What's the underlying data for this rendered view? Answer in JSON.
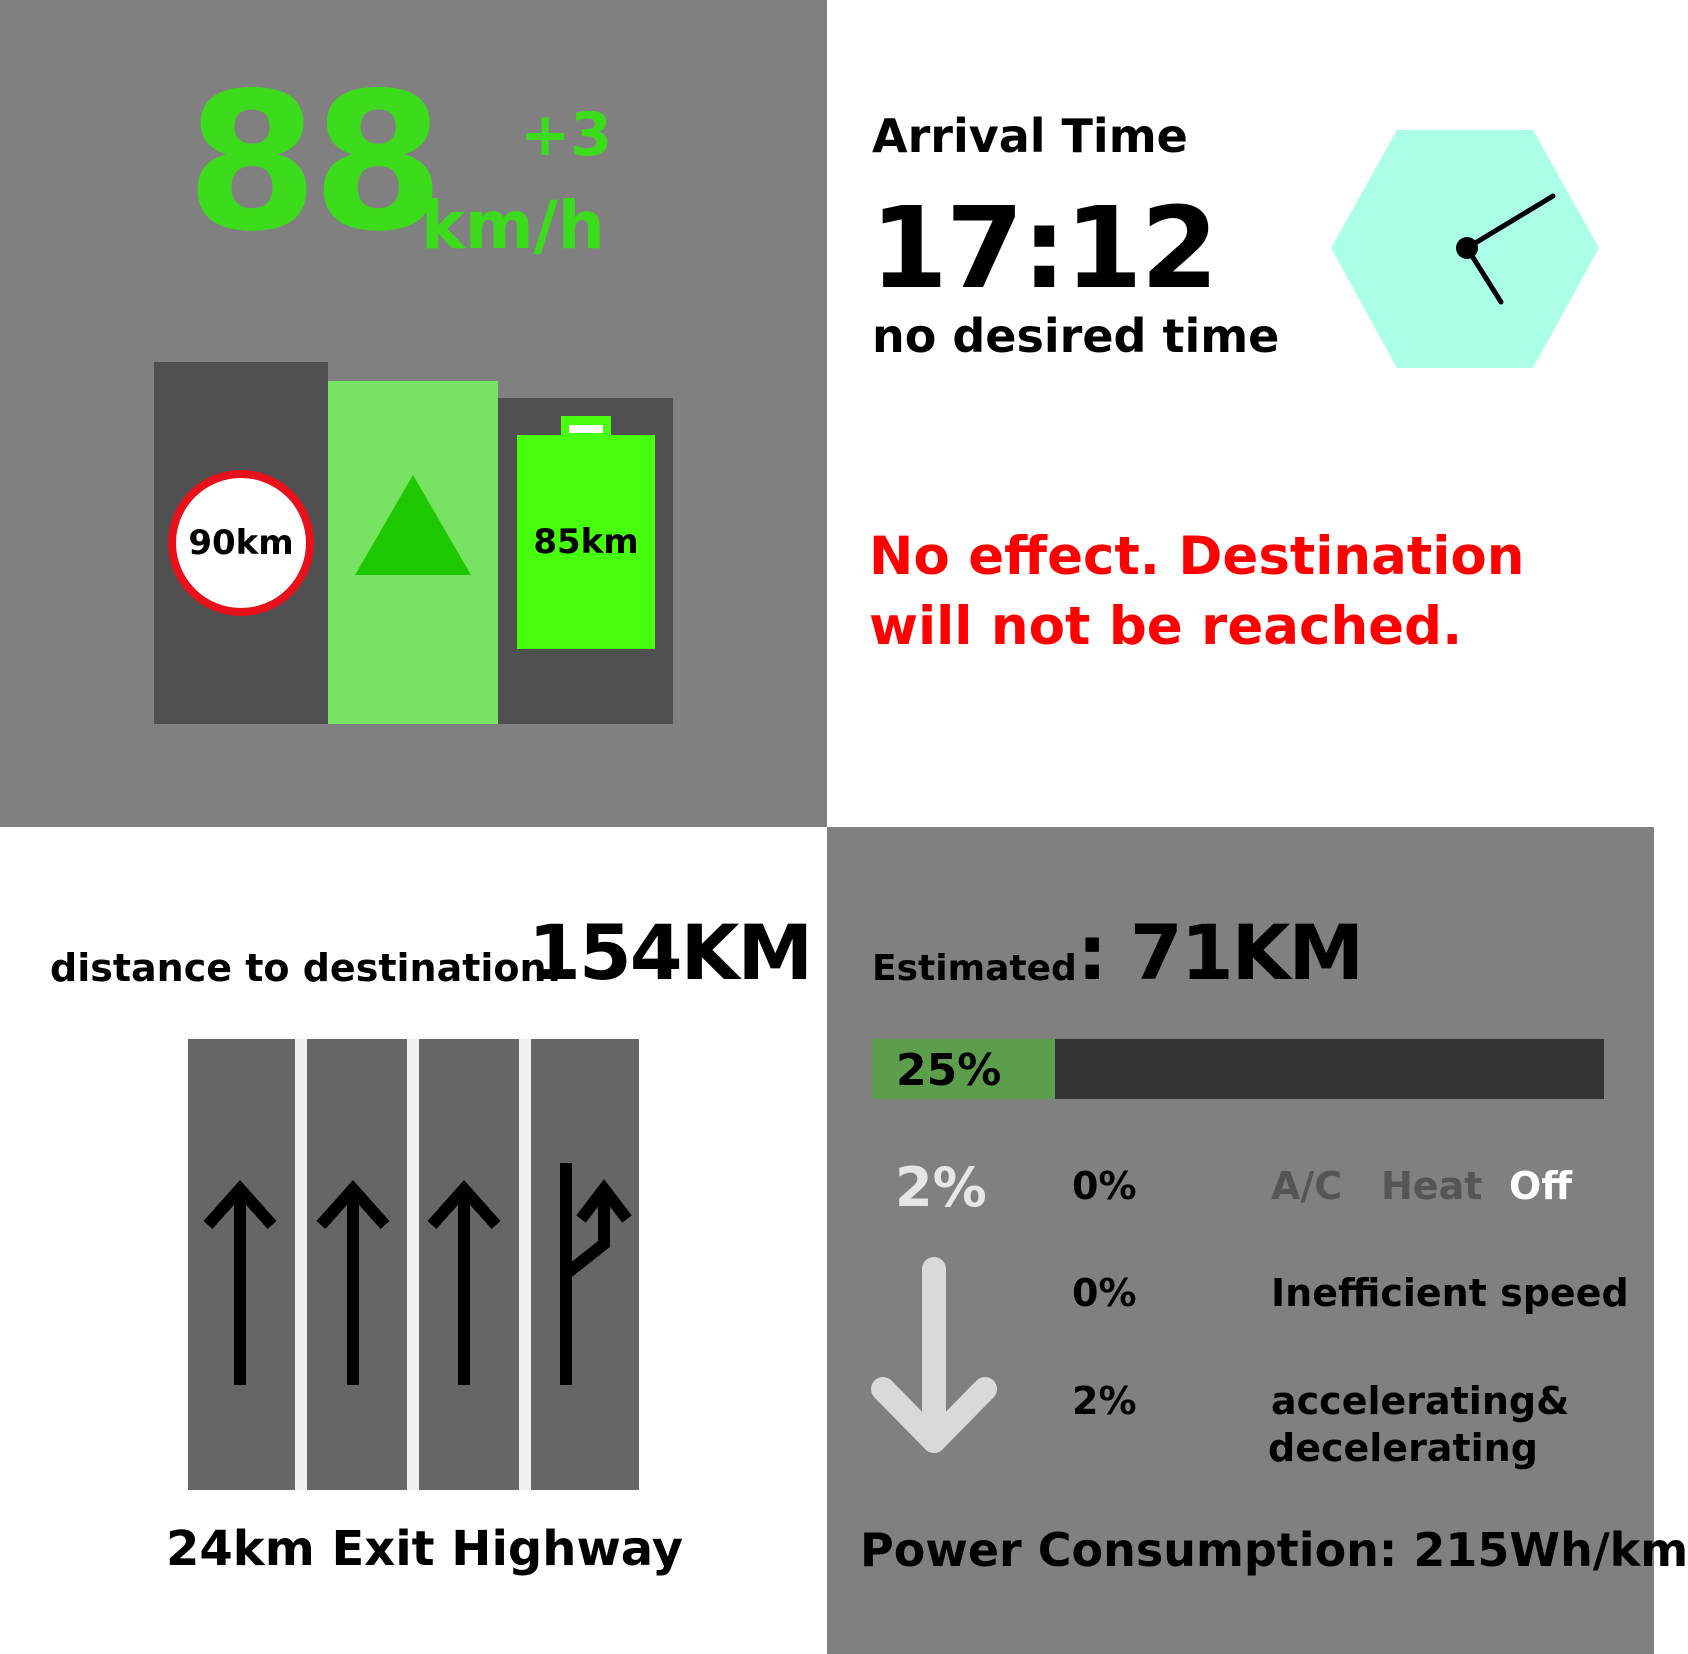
{
  "speed": {
    "value": "88",
    "delta": "+3",
    "unit": "km/h",
    "speed_limit_label": "90km",
    "range_label": "85km",
    "battery_level": 1.0,
    "colors": {
      "speed_text": "#3cdc1c",
      "active_lane": "#78e262",
      "triangle": "#1ec800",
      "battery": "#47ff0b",
      "limit_ring": "#e8101a"
    }
  },
  "arrival": {
    "title": "Arrival Time",
    "time": "17:12",
    "note": "no desired time",
    "warning": "No effect. Destination will not be reached.",
    "clock_icon": "hexagon-clock-icon",
    "colors": {
      "clock_bg": "#aaffe6",
      "warning": "#ff0000"
    }
  },
  "route": {
    "distance_label": "distance to destination:",
    "distance_value": "154KM",
    "exit_text": "24km Exit Highway",
    "lanes": [
      {
        "icon": "straight-arrow-icon"
      },
      {
        "icon": "straight-arrow-icon"
      },
      {
        "icon": "straight-arrow-icon"
      },
      {
        "icon": "exit-arrow-icon"
      }
    ]
  },
  "energy": {
    "estimated_label": "Estimated",
    "estimated_value": ": 71KM",
    "progress_percent": 25,
    "progress_label": "25%",
    "total_reduction": "2%",
    "reduction_icon": "down-arrow-icon",
    "climate": {
      "pct": "0%",
      "options": [
        "A/C",
        "Heat",
        "Off"
      ],
      "selected": "Off"
    },
    "rows": [
      {
        "pct": "0%",
        "label": "Inefficient speed"
      },
      {
        "pct": "2%",
        "label_line1": "accelerating&",
        "label_line2": "decelerating"
      }
    ],
    "power_consumption": "Power Consumption: 215Wh/km",
    "colors": {
      "bar_fill": "#5d9e4c",
      "bar_track": "#333333"
    }
  }
}
